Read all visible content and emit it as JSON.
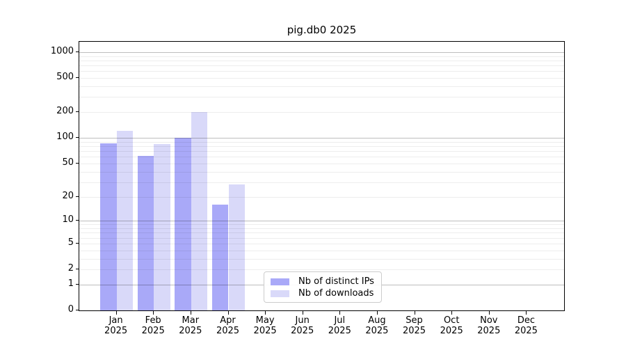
{
  "chart_data": {
    "type": "bar",
    "title": "pig.db0 2025",
    "xlabel": "",
    "ylabel": "",
    "categories": [
      "Jan",
      "Feb",
      "Mar",
      "Apr",
      "May",
      "Jun",
      "Jul",
      "Aug",
      "Sep",
      "Oct",
      "Nov",
      "Dec"
    ],
    "year_label": "2025",
    "series": [
      {
        "name": "Nb of distinct IPs",
        "color": "#a9a9f8",
        "values": [
          86,
          62,
          100,
          16,
          null,
          null,
          null,
          null,
          null,
          null,
          null,
          null
        ]
      },
      {
        "name": "Nb of downloads",
        "color": "#d9d9f9",
        "values": [
          121,
          85,
          199,
          28,
          null,
          null,
          null,
          null,
          null,
          null,
          null,
          null
        ]
      }
    ],
    "yticks": [
      0,
      1,
      2,
      5,
      10,
      20,
      50,
      100,
      200,
      500,
      1000
    ],
    "scale": "log1p",
    "ylim": [
      0,
      1320
    ],
    "xlim": [
      0,
      13
    ],
    "grid": true,
    "legend_position": "inside lower-center"
  }
}
